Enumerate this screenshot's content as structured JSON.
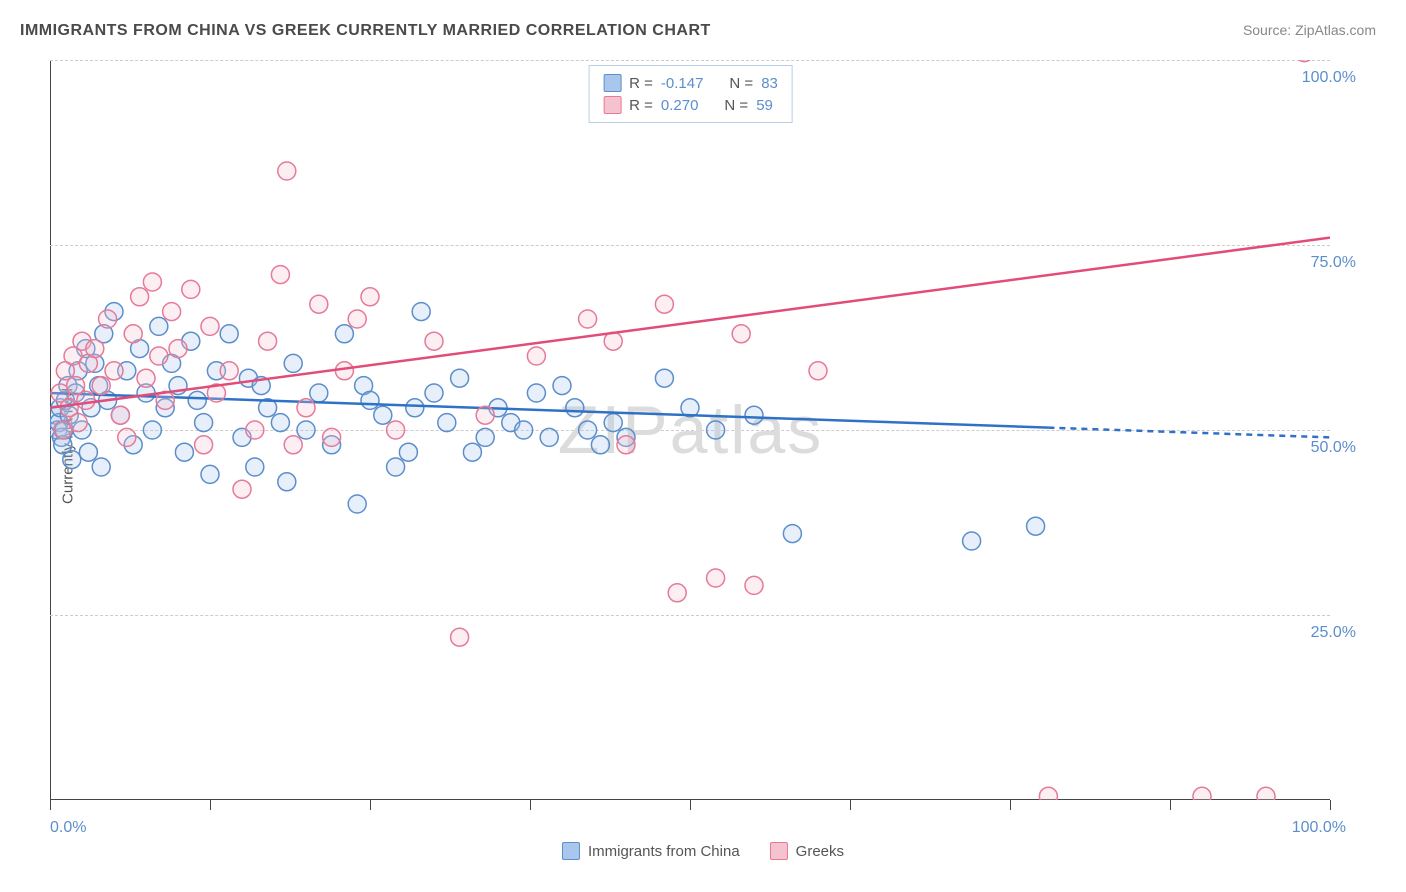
{
  "title": "IMMIGRANTS FROM CHINA VS GREEK CURRENTLY MARRIED CORRELATION CHART",
  "source": "Source: ZipAtlas.com",
  "watermark": "ZIPatlas",
  "chart": {
    "type": "scatter",
    "ylabel": "Currently Married",
    "xlim": [
      0,
      100
    ],
    "ylim": [
      0,
      100
    ],
    "xticks": [
      0,
      12.5,
      25,
      37.5,
      50,
      62.5,
      75,
      87.5,
      100
    ],
    "xticklabels_left": "0.0%",
    "xticklabels_right": "100.0%",
    "yticks": [
      25,
      50,
      75,
      100
    ],
    "yticklabels": [
      "25.0%",
      "50.0%",
      "75.0%",
      "100.0%"
    ],
    "grid_color": "#cccccc",
    "axis_color": "#444444",
    "background_color": "#ffffff",
    "marker_radius": 9,
    "marker_stroke_width": 1.5,
    "marker_fill_opacity": 0.28,
    "line_width": 2.5,
    "series": [
      {
        "name": "Immigrants from China",
        "color_fill": "#a9c7ec",
        "color_stroke": "#5b8ecb",
        "line_color": "#2f71c7",
        "R": "-0.147",
        "N": "83",
        "trend": {
          "x1": 0,
          "y1": 55,
          "x2": 100,
          "y2": 49,
          "solid_until_x": 78
        },
        "points": [
          [
            0.5,
            52
          ],
          [
            0.6,
            50
          ],
          [
            0.7,
            51
          ],
          [
            0.8,
            53
          ],
          [
            0.9,
            49
          ],
          [
            1.0,
            48
          ],
          [
            1.1,
            50
          ],
          [
            1.2,
            54
          ],
          [
            1.4,
            56
          ],
          [
            1.5,
            52
          ],
          [
            1.7,
            46
          ],
          [
            2.0,
            55
          ],
          [
            2.2,
            58
          ],
          [
            2.5,
            50
          ],
          [
            2.8,
            61
          ],
          [
            3.0,
            47
          ],
          [
            3.2,
            53
          ],
          [
            3.5,
            59
          ],
          [
            3.8,
            56
          ],
          [
            4.0,
            45
          ],
          [
            4.2,
            63
          ],
          [
            4.5,
            54
          ],
          [
            5.0,
            66
          ],
          [
            5.5,
            52
          ],
          [
            6.0,
            58
          ],
          [
            6.5,
            48
          ],
          [
            7.0,
            61
          ],
          [
            7.5,
            55
          ],
          [
            8.0,
            50
          ],
          [
            8.5,
            64
          ],
          [
            9.0,
            53
          ],
          [
            9.5,
            59
          ],
          [
            10,
            56
          ],
          [
            10.5,
            47
          ],
          [
            11,
            62
          ],
          [
            11.5,
            54
          ],
          [
            12,
            51
          ],
          [
            12.5,
            44
          ],
          [
            13,
            58
          ],
          [
            14,
            63
          ],
          [
            15,
            49
          ],
          [
            15.5,
            57
          ],
          [
            16,
            45
          ],
          [
            16.5,
            56
          ],
          [
            17,
            53
          ],
          [
            18,
            51
          ],
          [
            18.5,
            43
          ],
          [
            19,
            59
          ],
          [
            20,
            50
          ],
          [
            21,
            55
          ],
          [
            22,
            48
          ],
          [
            23,
            63
          ],
          [
            24,
            40
          ],
          [
            24.5,
            56
          ],
          [
            25,
            54
          ],
          [
            26,
            52
          ],
          [
            27,
            45
          ],
          [
            28,
            47
          ],
          [
            28.5,
            53
          ],
          [
            29,
            66
          ],
          [
            30,
            55
          ],
          [
            31,
            51
          ],
          [
            32,
            57
          ],
          [
            33,
            47
          ],
          [
            34,
            49
          ],
          [
            35,
            53
          ],
          [
            36,
            51
          ],
          [
            37,
            50
          ],
          [
            38,
            55
          ],
          [
            39,
            49
          ],
          [
            40,
            56
          ],
          [
            41,
            53
          ],
          [
            42,
            50
          ],
          [
            43,
            48
          ],
          [
            44,
            51
          ],
          [
            45,
            49
          ],
          [
            48,
            57
          ],
          [
            50,
            53
          ],
          [
            52,
            50
          ],
          [
            55,
            52
          ],
          [
            58,
            36
          ],
          [
            72,
            35
          ],
          [
            77,
            37
          ]
        ]
      },
      {
        "name": "Greeks",
        "color_fill": "#f4c3cf",
        "color_stroke": "#e67a97",
        "line_color": "#e14d78",
        "R": "0.270",
        "N": "59",
        "trend": {
          "x1": 0,
          "y1": 53,
          "x2": 100,
          "y2": 76,
          "solid_until_x": 100
        },
        "points": [
          [
            0.8,
            55
          ],
          [
            1.0,
            50
          ],
          [
            1.2,
            58
          ],
          [
            1.5,
            53
          ],
          [
            1.8,
            60
          ],
          [
            2.0,
            56
          ],
          [
            2.2,
            51
          ],
          [
            2.5,
            62
          ],
          [
            2.8,
            54
          ],
          [
            3.0,
            59
          ],
          [
            3.5,
            61
          ],
          [
            4.0,
            56
          ],
          [
            4.5,
            65
          ],
          [
            5.0,
            58
          ],
          [
            5.5,
            52
          ],
          [
            6.0,
            49
          ],
          [
            6.5,
            63
          ],
          [
            7.0,
            68
          ],
          [
            7.5,
            57
          ],
          [
            8.0,
            70
          ],
          [
            8.5,
            60
          ],
          [
            9.0,
            54
          ],
          [
            9.5,
            66
          ],
          [
            10,
            61
          ],
          [
            11,
            69
          ],
          [
            12,
            48
          ],
          [
            12.5,
            64
          ],
          [
            13,
            55
          ],
          [
            14,
            58
          ],
          [
            15,
            42
          ],
          [
            16,
            50
          ],
          [
            17,
            62
          ],
          [
            18,
            71
          ],
          [
            18.5,
            85
          ],
          [
            19,
            48
          ],
          [
            20,
            53
          ],
          [
            21,
            67
          ],
          [
            22,
            49
          ],
          [
            23,
            58
          ],
          [
            24,
            65
          ],
          [
            25,
            68
          ],
          [
            27,
            50
          ],
          [
            30,
            62
          ],
          [
            32,
            22
          ],
          [
            34,
            52
          ],
          [
            38,
            60
          ],
          [
            42,
            65
          ],
          [
            44,
            62
          ],
          [
            45,
            48
          ],
          [
            48,
            67
          ],
          [
            49,
            28
          ],
          [
            52,
            30
          ],
          [
            54,
            63
          ],
          [
            55,
            29
          ],
          [
            60,
            58
          ],
          [
            78,
            0.5
          ],
          [
            90,
            0.5
          ],
          [
            95,
            0.5
          ],
          [
            98,
            101
          ]
        ]
      }
    ]
  },
  "legend_top": {
    "r_label": "R =",
    "n_label": "N ="
  },
  "colors": {
    "text_title": "#4a4a4a",
    "text_muted": "#888888",
    "ticklabel": "#5b8ecb"
  }
}
